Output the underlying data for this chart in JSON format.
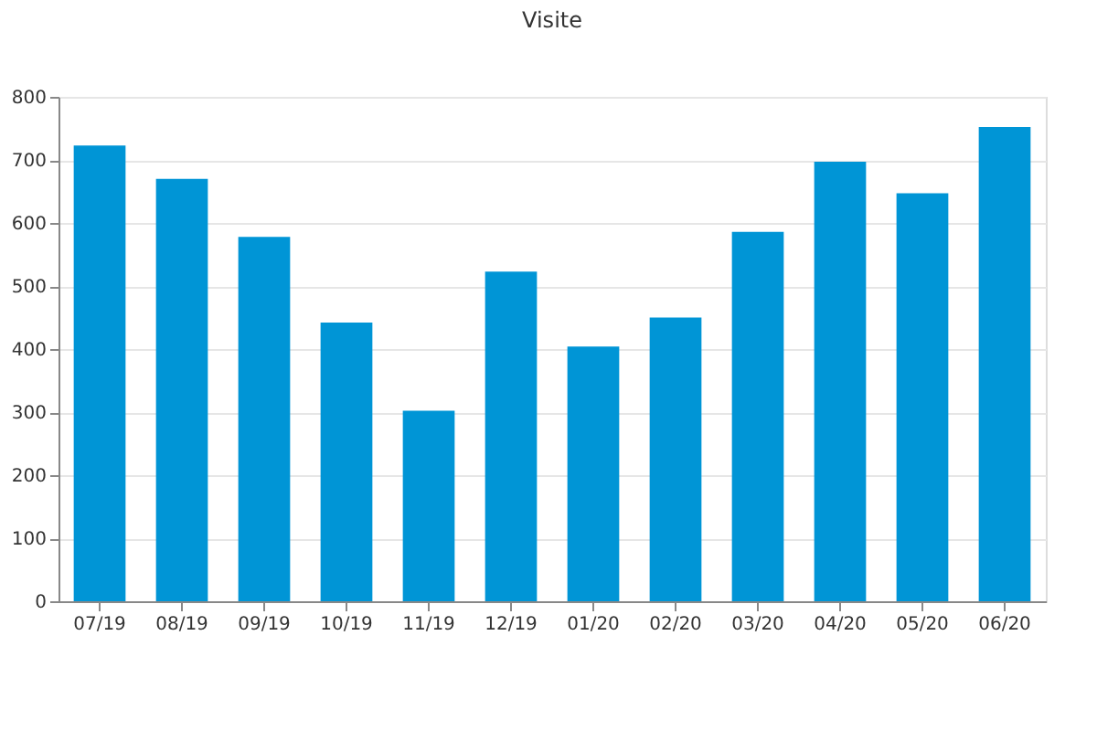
{
  "chart_data": {
    "type": "bar",
    "title": "Visite",
    "categories": [
      "07/19",
      "08/19",
      "09/19",
      "10/19",
      "11/19",
      "12/19",
      "01/20",
      "02/20",
      "03/20",
      "04/20",
      "05/20",
      "06/20"
    ],
    "values": [
      723,
      670,
      578,
      442,
      302,
      523,
      404,
      450,
      586,
      697,
      647,
      752
    ],
    "color": "#0095d6",
    "ylim": [
      0,
      800
    ],
    "yticks": [
      0,
      100,
      200,
      300,
      400,
      500,
      600,
      700,
      800
    ],
    "grid": "y"
  }
}
